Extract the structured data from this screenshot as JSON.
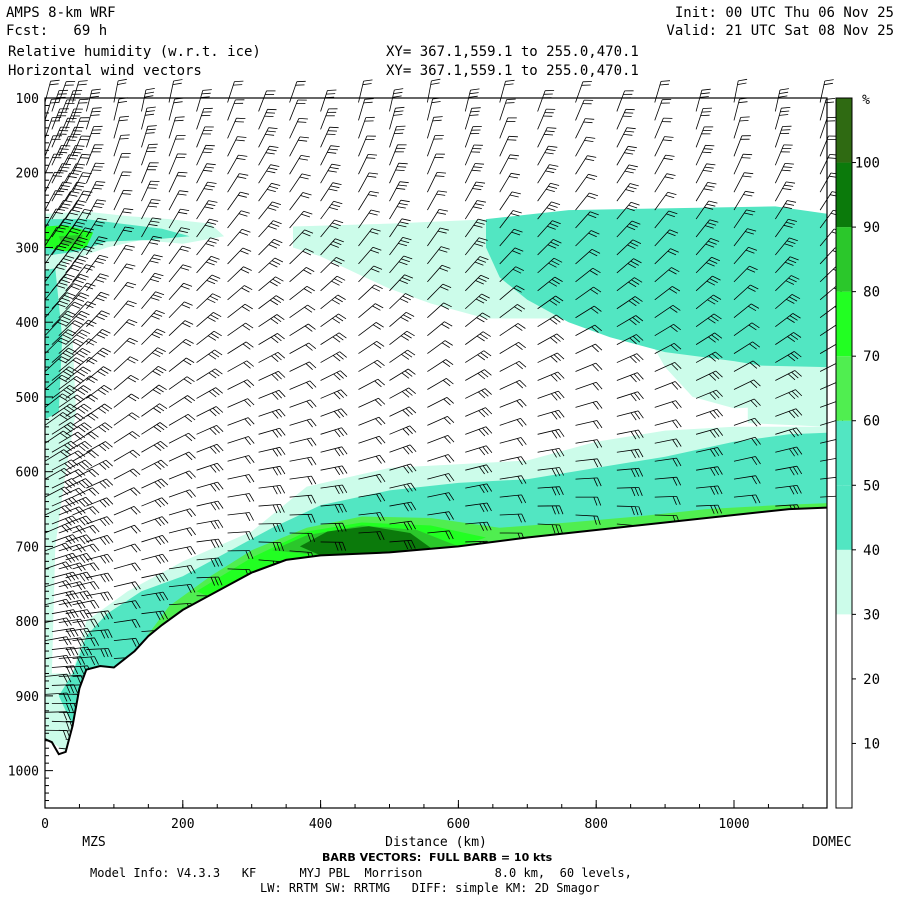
{
  "header": {
    "model": "AMPS 8-km WRF",
    "fcst": "Fcst:   69 h",
    "field1": "Relative humidity (w.r.t. ice)",
    "field2": "Horizontal wind vectors",
    "init": "Init: 00 UTC Thu 06 Nov 25",
    "valid": "Valid: 21 UTC Sat 08 Nov 25",
    "xy1": "XY= 367.1,559.1 to 255.0,470.1",
    "xy2": "XY= 367.1,559.1 to 255.0,470.1"
  },
  "footer": {
    "barb": "BARB VECTORS:  FULL BARB = 10 kts",
    "model_info": "Model Info: V4.3.3   KF      MYJ PBL  Morrison          8.0 km,  60 levels,",
    "physics": "LW: RRTM SW: RRTMG   DIFF: simple KM: 2D Smagor"
  },
  "colors": {
    "c0": "#ffffff",
    "c30": "#ccfcea",
    "c40": "#52e6c2",
    "c60": "#50ee50",
    "c70": "#22ff22",
    "c80": "#2bc72b",
    "c90": "#0b7a0b",
    "c100": "#2f6a12",
    "c110": "#436b12"
  },
  "chart_data": {
    "type": "heatmap",
    "xlabel": "Distance (km)",
    "ylabel": "",
    "xlim": [
      0,
      1135
    ],
    "ylim": [
      1050,
      100
    ],
    "x_ticks": [
      "0",
      "200",
      "400",
      "600",
      "800",
      "1000"
    ],
    "y_ticks": [
      "100",
      "200",
      "300",
      "400",
      "500",
      "600",
      "700",
      "800",
      "900",
      "1000"
    ],
    "x_end_labels": [
      "MZS",
      "DOMEC"
    ],
    "colorbar": {
      "unit": "%",
      "ticks": [
        "10",
        "20",
        "30",
        "40",
        "50",
        "60",
        "70",
        "80",
        "90",
        "100"
      ],
      "levels": [
        0,
        10,
        20,
        30,
        40,
        50,
        60,
        70,
        80,
        90,
        100,
        110
      ]
    },
    "terrain_pressure": [
      [
        0,
        958
      ],
      [
        10,
        962
      ],
      [
        20,
        978
      ],
      [
        30,
        975
      ],
      [
        40,
        940
      ],
      [
        50,
        890
      ],
      [
        60,
        865
      ],
      [
        80,
        860
      ],
      [
        100,
        862
      ],
      [
        130,
        840
      ],
      [
        150,
        820
      ],
      [
        170,
        805
      ],
      [
        200,
        785
      ],
      [
        250,
        760
      ],
      [
        300,
        735
      ],
      [
        350,
        718
      ],
      [
        400,
        712
      ],
      [
        500,
        708
      ],
      [
        600,
        700
      ],
      [
        700,
        688
      ],
      [
        800,
        678
      ],
      [
        900,
        668
      ],
      [
        1000,
        658
      ],
      [
        1080,
        650
      ],
      [
        1135,
        648
      ]
    ],
    "barb_columns_km": [
      0,
      10,
      20,
      30,
      40,
      60,
      100,
      140,
      180,
      220,
      265,
      310,
      355,
      400,
      455,
      500,
      555,
      610,
      660,
      715,
      770,
      830,
      885,
      945,
      1000,
      1060,
      1125
    ]
  }
}
